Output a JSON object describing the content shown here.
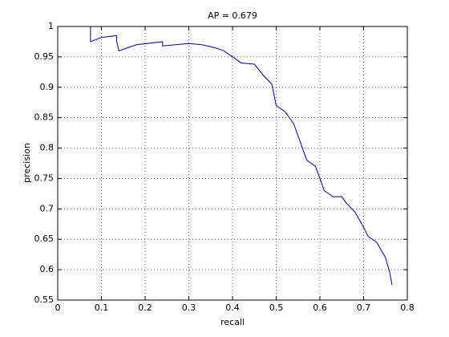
{
  "chart_data": {
    "type": "line",
    "title": "AP = 0.679",
    "x_label": "recall",
    "y_label": "precision",
    "x": [
      0.075,
      0.075,
      0.1,
      0.135,
      0.135,
      0.14,
      0.18,
      0.24,
      0.24,
      0.3,
      0.33,
      0.36,
      0.38,
      0.4,
      0.42,
      0.45,
      0.47,
      0.49,
      0.5,
      0.52,
      0.54,
      0.55,
      0.56,
      0.57,
      0.59,
      0.6,
      0.61,
      0.63,
      0.65,
      0.66,
      0.68,
      0.7,
      0.71,
      0.73,
      0.75,
      0.76,
      0.765
    ],
    "values": [
      1,
      0.975,
      0.982,
      0.985,
      0.975,
      0.96,
      0.97,
      0.975,
      0.968,
      0.972,
      0.97,
      0.965,
      0.96,
      0.95,
      0.94,
      0.938,
      0.92,
      0.905,
      0.87,
      0.86,
      0.84,
      0.82,
      0.8,
      0.78,
      0.77,
      0.75,
      0.73,
      0.72,
      0.72,
      0.71,
      0.695,
      0.67,
      0.655,
      0.645,
      0.62,
      0.595,
      0.575
    ],
    "color": "#00008b",
    "xlim": [
      0,
      0.8
    ],
    "xticks": [
      0,
      0.1,
      0.2,
      0.3,
      0.4,
      0.5,
      0.6,
      0.7,
      0.8
    ],
    "ylim": [
      0.55,
      1
    ],
    "yticks": [
      0.55,
      0.6,
      0.65,
      0.7,
      0.75,
      0.8,
      0.85,
      0.9,
      0.95,
      1
    ],
    "grid": true
  }
}
